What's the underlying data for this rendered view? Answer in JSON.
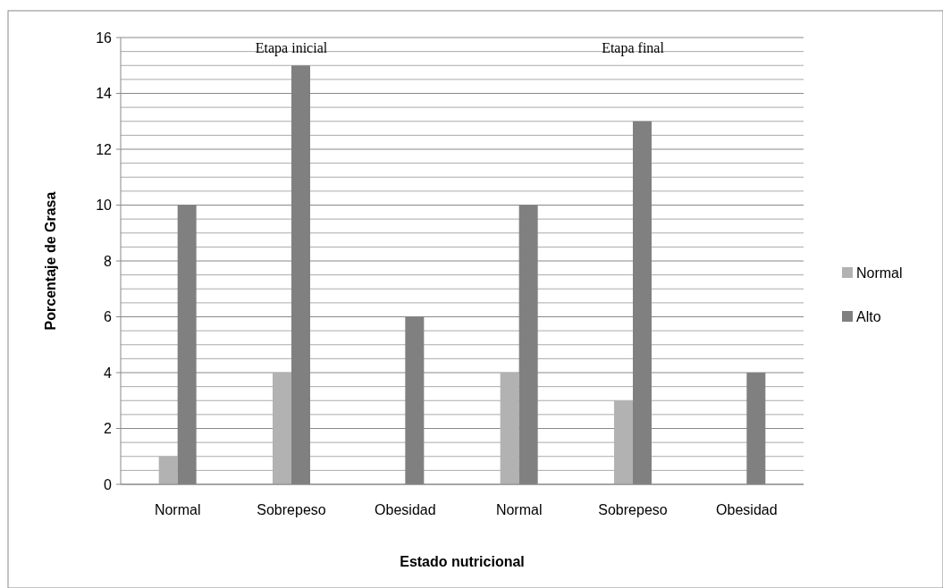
{
  "chart_data": {
    "type": "bar",
    "xlabel": "Estado nutricional",
    "ylabel": "Porcentaje de Grasa",
    "categories": [
      "Normal",
      "Sobrepeso",
      "Obesidad",
      "Normal",
      "Sobrepeso",
      "Obesidad"
    ],
    "series": [
      {
        "name": "Normal",
        "color": "#b2b2b2",
        "values": [
          1,
          4,
          0,
          4,
          3,
          0
        ]
      },
      {
        "name": "Alto",
        "color": "#808080",
        "values": [
          10,
          15,
          6,
          10,
          13,
          4
        ]
      }
    ],
    "ylim": [
      0,
      16
    ],
    "yticks": [
      0,
      {
        "value": 0.5,
        "label": null
      },
      {
        "value": 1,
        "label": null
      },
      {
        "value": 1.5,
        "label": null
      },
      2,
      {
        "value": 2.5,
        "label": null
      },
      {
        "value": 3,
        "label": null
      },
      {
        "value": 3.5,
        "label": null
      },
      4,
      {
        "value": 4.5,
        "label": null
      },
      {
        "value": 5,
        "label": null
      },
      {
        "value": 5.5,
        "label": null
      },
      6,
      {
        "value": 6.5,
        "label": null
      },
      {
        "value": 7,
        "label": null
      },
      {
        "value": 7.5,
        "label": null
      },
      8,
      {
        "value": 8.5,
        "label": null
      },
      {
        "value": 9,
        "label": null
      },
      {
        "value": 9.5,
        "label": null
      },
      10,
      {
        "value": 10.5,
        "label": null
      },
      {
        "value": 11,
        "label": null
      },
      {
        "value": 11.5,
        "label": null
      },
      12,
      {
        "value": 12.5,
        "label": null
      },
      {
        "value": 13,
        "label": null
      },
      {
        "value": 13.5,
        "label": null
      },
      14,
      {
        "value": 14.5,
        "label": null
      },
      {
        "value": 15,
        "label": null
      },
      {
        "value": 15.5,
        "label": null
      },
      16
    ],
    "grid": true,
    "legend": "right",
    "annotations": [
      "Etapa inicial",
      "Etapa final"
    ]
  }
}
